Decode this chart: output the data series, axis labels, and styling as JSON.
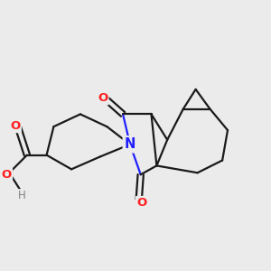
{
  "background_color": "#ebebeb",
  "bond_color": "#1a1a1a",
  "N_color": "#2020ff",
  "O_color": "#ff2020",
  "H_color": "#808080",
  "line_width": 1.6,
  "dbo": 0.07,
  "xlim": [
    -3.0,
    4.2
  ],
  "ylim": [
    -2.2,
    2.8
  ],
  "figsize": [
    3.0,
    3.0
  ],
  "dpi": 100
}
